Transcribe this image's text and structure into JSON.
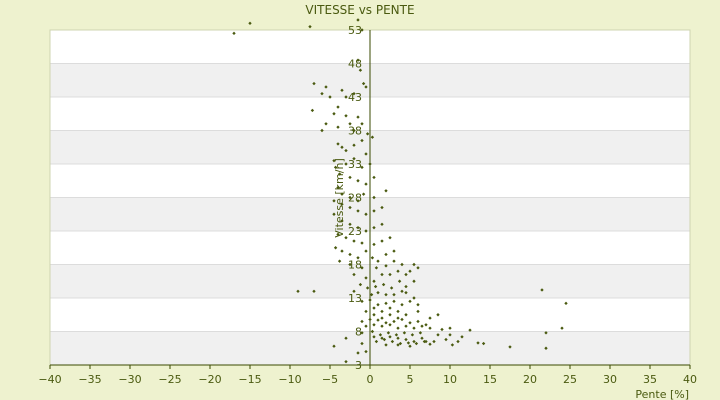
{
  "chart_data": {
    "type": "scatter",
    "title": "VITESSE vs PENTE",
    "xlabel": "Pente [%]",
    "ylabel": "Vitesse [km/h]",
    "xlim": [
      -40,
      40
    ],
    "ylim": [
      3,
      55.5
    ],
    "xticks": [
      -40,
      -35,
      -30,
      -25,
      -20,
      -15,
      -10,
      -5,
      0,
      5,
      10,
      15,
      20,
      25,
      30,
      35,
      40
    ],
    "yticks": [
      3,
      8,
      13,
      18,
      23,
      28,
      33,
      38,
      43,
      48,
      53
    ],
    "grid": true,
    "legend": "none",
    "colors": {
      "background": "#eef2cf",
      "band_light": "#ffffff",
      "band_dark": "#f0f0f0",
      "point": "#4a5a10",
      "axis": "#3a4a00"
    },
    "points": [
      [
        -17,
        52.5
      ],
      [
        -15,
        54
      ],
      [
        -7.5,
        53.5
      ],
      [
        -1.5,
        54.5
      ],
      [
        -1,
        53
      ],
      [
        -1.5,
        48.5
      ],
      [
        -1.2,
        47
      ],
      [
        -0.8,
        45
      ],
      [
        -0.5,
        44.5
      ],
      [
        -2,
        43.5
      ],
      [
        -3,
        43
      ],
      [
        -3.5,
        44
      ],
      [
        -4,
        41.5
      ],
      [
        -5.5,
        44.5
      ],
      [
        -6,
        43.5
      ],
      [
        -7,
        45
      ],
      [
        -5,
        43
      ],
      [
        -7.2,
        41
      ],
      [
        -4.5,
        40.5
      ],
      [
        -3,
        40.2
      ],
      [
        -1.5,
        40
      ],
      [
        -2.5,
        39
      ],
      [
        -5.5,
        39
      ],
      [
        -4,
        38.5
      ],
      [
        -6,
        38
      ],
      [
        -2,
        38
      ],
      [
        -1,
        39
      ],
      [
        -0.3,
        37.5
      ],
      [
        0.3,
        37
      ],
      [
        -4,
        36
      ],
      [
        -3.5,
        35.5
      ],
      [
        -3,
        35
      ],
      [
        -2,
        35.8
      ],
      [
        -1,
        36.5
      ],
      [
        -0.5,
        34.5
      ],
      [
        -4.5,
        33.5
      ],
      [
        -3,
        33
      ],
      [
        -2,
        33.8
      ],
      [
        -1,
        32.5
      ],
      [
        0,
        33
      ],
      [
        -4.3,
        32.5
      ],
      [
        -3.8,
        31.5
      ],
      [
        -2.5,
        31
      ],
      [
        -1.5,
        30.5
      ],
      [
        -0.5,
        30
      ],
      [
        0.5,
        31
      ],
      [
        -4,
        29.5
      ],
      [
        -3.5,
        28.5
      ],
      [
        -2.5,
        28
      ],
      [
        -1.5,
        27.5
      ],
      [
        -0.8,
        28.5
      ],
      [
        0.5,
        28
      ],
      [
        2,
        29
      ],
      [
        -4.5,
        27.5
      ],
      [
        -3.5,
        27
      ],
      [
        -2.5,
        26.5
      ],
      [
        -1.5,
        26
      ],
      [
        -0.5,
        25.5
      ],
      [
        0.5,
        26
      ],
      [
        1.5,
        26.5
      ],
      [
        -4.5,
        25.5
      ],
      [
        -3.5,
        24.5
      ],
      [
        -2.5,
        24
      ],
      [
        -1.5,
        23.5
      ],
      [
        -0.5,
        23
      ],
      [
        0.5,
        23.5
      ],
      [
        1.5,
        24
      ],
      [
        -4,
        22.5
      ],
      [
        -3,
        22
      ],
      [
        -2,
        21.5
      ],
      [
        -1,
        21.2
      ],
      [
        0.5,
        21
      ],
      [
        1.5,
        21.5
      ],
      [
        2.5,
        22
      ],
      [
        -4.3,
        20.5
      ],
      [
        -3.5,
        20
      ],
      [
        -2.5,
        19.5
      ],
      [
        -1.5,
        19
      ],
      [
        -0.5,
        20
      ],
      [
        0.3,
        19
      ],
      [
        1,
        18.5
      ],
      [
        2,
        19.5
      ],
      [
        3,
        20
      ],
      [
        -3.8,
        18.5
      ],
      [
        -2.5,
        18
      ],
      [
        -1,
        17.5
      ],
      [
        0.8,
        17.5
      ],
      [
        2,
        17.8
      ],
      [
        3,
        18.5
      ],
      [
        4,
        18
      ],
      [
        5.5,
        18
      ],
      [
        -2,
        16.5
      ],
      [
        -0.5,
        16
      ],
      [
        0.5,
        15.5
      ],
      [
        1.5,
        16.5
      ],
      [
        2.5,
        16.5
      ],
      [
        3.5,
        17
      ],
      [
        4.5,
        16.5
      ],
      [
        5,
        17
      ],
      [
        6,
        17.5
      ],
      [
        -1.2,
        15
      ],
      [
        -0.3,
        14.5
      ],
      [
        0.7,
        14.7
      ],
      [
        1.7,
        15
      ],
      [
        2.7,
        14.5
      ],
      [
        3.7,
        15.5
      ],
      [
        4.5,
        14.7
      ],
      [
        5.5,
        15.5
      ],
      [
        -9,
        14
      ],
      [
        -7,
        14
      ],
      [
        -2,
        14
      ],
      [
        0.2,
        13.5
      ],
      [
        1,
        13.8
      ],
      [
        2,
        13.5
      ],
      [
        3,
        13.5
      ],
      [
        4,
        14
      ],
      [
        4.5,
        13.8
      ],
      [
        5.5,
        13
      ],
      [
        -1,
        12.5
      ],
      [
        0,
        12.7
      ],
      [
        1,
        12
      ],
      [
        2,
        12.2
      ],
      [
        3,
        12.5
      ],
      [
        4,
        12
      ],
      [
        5,
        12.5
      ],
      [
        6,
        12
      ],
      [
        -0.5,
        11
      ],
      [
        0.5,
        11.5
      ],
      [
        1.5,
        11
      ],
      [
        2.5,
        11.5
      ],
      [
        3.5,
        11
      ],
      [
        6,
        11
      ],
      [
        0.5,
        10.5
      ],
      [
        1.5,
        10
      ],
      [
        2.5,
        10.5
      ],
      [
        3.5,
        10
      ],
      [
        4.5,
        10.5
      ],
      [
        7.5,
        10
      ],
      [
        8.5,
        10.5
      ],
      [
        -1,
        9.5
      ],
      [
        0,
        9.8
      ],
      [
        1,
        9.7
      ],
      [
        2,
        9.3
      ],
      [
        3,
        9.5
      ],
      [
        4,
        9.8
      ],
      [
        5,
        9.3
      ],
      [
        6,
        9.5
      ],
      [
        7,
        9
      ],
      [
        -0.5,
        8.8
      ],
      [
        0.5,
        9
      ],
      [
        1.5,
        8.8
      ],
      [
        2.5,
        9
      ],
      [
        3.5,
        8.5
      ],
      [
        4.5,
        8.8
      ],
      [
        5.5,
        8.5
      ],
      [
        6.5,
        8.8
      ],
      [
        7.5,
        8.5
      ],
      [
        9,
        8.3
      ],
      [
        10,
        8.5
      ],
      [
        12.5,
        8.2
      ],
      [
        -1,
        7.8
      ],
      [
        0.3,
        8
      ],
      [
        1.3,
        7.5
      ],
      [
        2.3,
        7.8
      ],
      [
        3.3,
        7.5
      ],
      [
        4.3,
        7.8
      ],
      [
        5.3,
        7.5
      ],
      [
        6.3,
        7.8
      ],
      [
        8.5,
        7.5
      ],
      [
        10,
        7.5
      ],
      [
        11.5,
        7.2
      ],
      [
        22,
        7.8
      ],
      [
        24,
        8.5
      ],
      [
        0.5,
        7.2
      ],
      [
        1.5,
        7
      ],
      [
        2.5,
        7.2
      ],
      [
        3.5,
        7
      ],
      [
        4.5,
        6.8
      ],
      [
        5.5,
        6.5
      ],
      [
        6.5,
        7
      ],
      [
        7,
        6.5
      ],
      [
        8,
        6.5
      ],
      [
        9.5,
        6.8
      ],
      [
        11,
        6.5
      ],
      [
        0.8,
        6.5
      ],
      [
        1.8,
        6.8
      ],
      [
        2.8,
        6.5
      ],
      [
        3.8,
        6.2
      ],
      [
        4.8,
        6.3
      ],
      [
        5.8,
        6.2
      ],
      [
        6.8,
        6.5
      ],
      [
        10.3,
        6
      ],
      [
        13.5,
        6.3
      ],
      [
        14.2,
        6.2
      ],
      [
        -4.5,
        5.8
      ],
      [
        -1,
        6.2
      ],
      [
        2,
        6
      ],
      [
        3.5,
        6
      ],
      [
        5,
        5.8
      ],
      [
        7.5,
        6.1
      ],
      [
        17.5,
        5.7
      ],
      [
        22,
        5.5
      ],
      [
        21.5,
        14.2
      ],
      [
        24.5,
        12.2
      ],
      [
        -3,
        7
      ],
      [
        -0.5,
        5
      ],
      [
        -3,
        3.5
      ],
      [
        -1.5,
        4.8
      ]
    ]
  }
}
